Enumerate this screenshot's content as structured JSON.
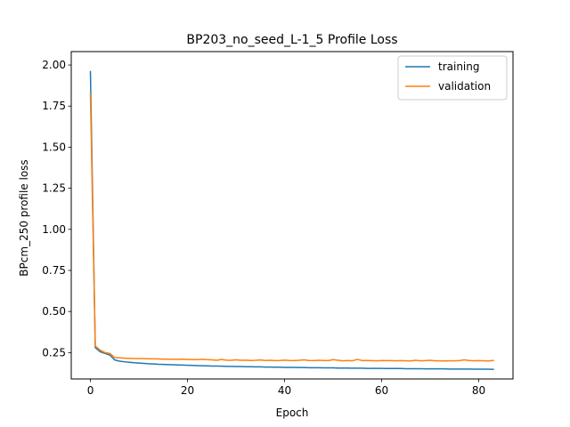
{
  "chart_data": {
    "type": "line",
    "title": "BP203_no_seed_L-1_5  Profile Loss",
    "xlabel": "Epoch",
    "ylabel": "BPcm_250 profile loss",
    "xlim": [
      -3.95,
      87.05
    ],
    "ylim": [
      0.0895,
      2.0815
    ],
    "xticks": [
      0,
      20,
      40,
      60,
      80
    ],
    "xtick_labels": [
      "0",
      "20",
      "40",
      "60",
      "80"
    ],
    "yticks": [
      0.25,
      0.5,
      0.75,
      1.0,
      1.25,
      1.5,
      1.75,
      2.0
    ],
    "ytick_labels": [
      "0.25",
      "0.50",
      "0.75",
      "1.00",
      "1.25",
      "1.50",
      "1.75",
      "2.00"
    ],
    "grid": false,
    "legend_position": "top-right",
    "x": [
      0,
      1,
      2,
      3,
      4,
      5,
      6,
      7,
      8,
      9,
      10,
      11,
      12,
      13,
      14,
      15,
      16,
      17,
      18,
      19,
      20,
      21,
      22,
      23,
      24,
      25,
      26,
      27,
      28,
      29,
      30,
      31,
      32,
      33,
      34,
      35,
      36,
      37,
      38,
      39,
      40,
      41,
      42,
      43,
      44,
      45,
      46,
      47,
      48,
      49,
      50,
      51,
      52,
      53,
      54,
      55,
      56,
      57,
      58,
      59,
      60,
      61,
      62,
      63,
      64,
      65,
      66,
      67,
      68,
      69,
      70,
      71,
      72,
      73,
      74,
      75,
      76,
      77,
      78,
      79,
      80,
      81,
      82,
      83
    ],
    "series": [
      {
        "name": "training",
        "color": "#1f77b4",
        "values": [
          1.96,
          0.28,
          0.255,
          0.245,
          0.235,
          0.205,
          0.198,
          0.194,
          0.191,
          0.188,
          0.186,
          0.184,
          0.182,
          0.181,
          0.179,
          0.178,
          0.177,
          0.176,
          0.175,
          0.174,
          0.173,
          0.172,
          0.171,
          0.17,
          0.169,
          0.168,
          0.168,
          0.167,
          0.166,
          0.166,
          0.165,
          0.165,
          0.164,
          0.164,
          0.163,
          0.163,
          0.162,
          0.162,
          0.161,
          0.161,
          0.16,
          0.16,
          0.16,
          0.159,
          0.159,
          0.158,
          0.158,
          0.158,
          0.157,
          0.157,
          0.157,
          0.156,
          0.156,
          0.156,
          0.155,
          0.155,
          0.155,
          0.154,
          0.154,
          0.154,
          0.154,
          0.153,
          0.153,
          0.153,
          0.153,
          0.152,
          0.152,
          0.152,
          0.152,
          0.151,
          0.151,
          0.151,
          0.151,
          0.151,
          0.15,
          0.15,
          0.15,
          0.15,
          0.15,
          0.149,
          0.149,
          0.149,
          0.149,
          0.148
        ]
      },
      {
        "name": "validation",
        "color": "#ff7f0e",
        "values": [
          1.82,
          0.29,
          0.265,
          0.25,
          0.245,
          0.22,
          0.218,
          0.216,
          0.215,
          0.214,
          0.213,
          0.213,
          0.212,
          0.212,
          0.211,
          0.21,
          0.21,
          0.209,
          0.209,
          0.21,
          0.208,
          0.208,
          0.207,
          0.209,
          0.207,
          0.206,
          0.203,
          0.208,
          0.204,
          0.203,
          0.206,
          0.203,
          0.204,
          0.202,
          0.203,
          0.205,
          0.202,
          0.203,
          0.201,
          0.202,
          0.204,
          0.202,
          0.201,
          0.203,
          0.206,
          0.202,
          0.201,
          0.203,
          0.202,
          0.201,
          0.207,
          0.203,
          0.2,
          0.202,
          0.2,
          0.209,
          0.201,
          0.202,
          0.201,
          0.2,
          0.202,
          0.201,
          0.201,
          0.2,
          0.201,
          0.2,
          0.199,
          0.203,
          0.2,
          0.201,
          0.203,
          0.2,
          0.2,
          0.199,
          0.2,
          0.2,
          0.201,
          0.206,
          0.202,
          0.2,
          0.201,
          0.2,
          0.199,
          0.202
        ]
      }
    ]
  }
}
